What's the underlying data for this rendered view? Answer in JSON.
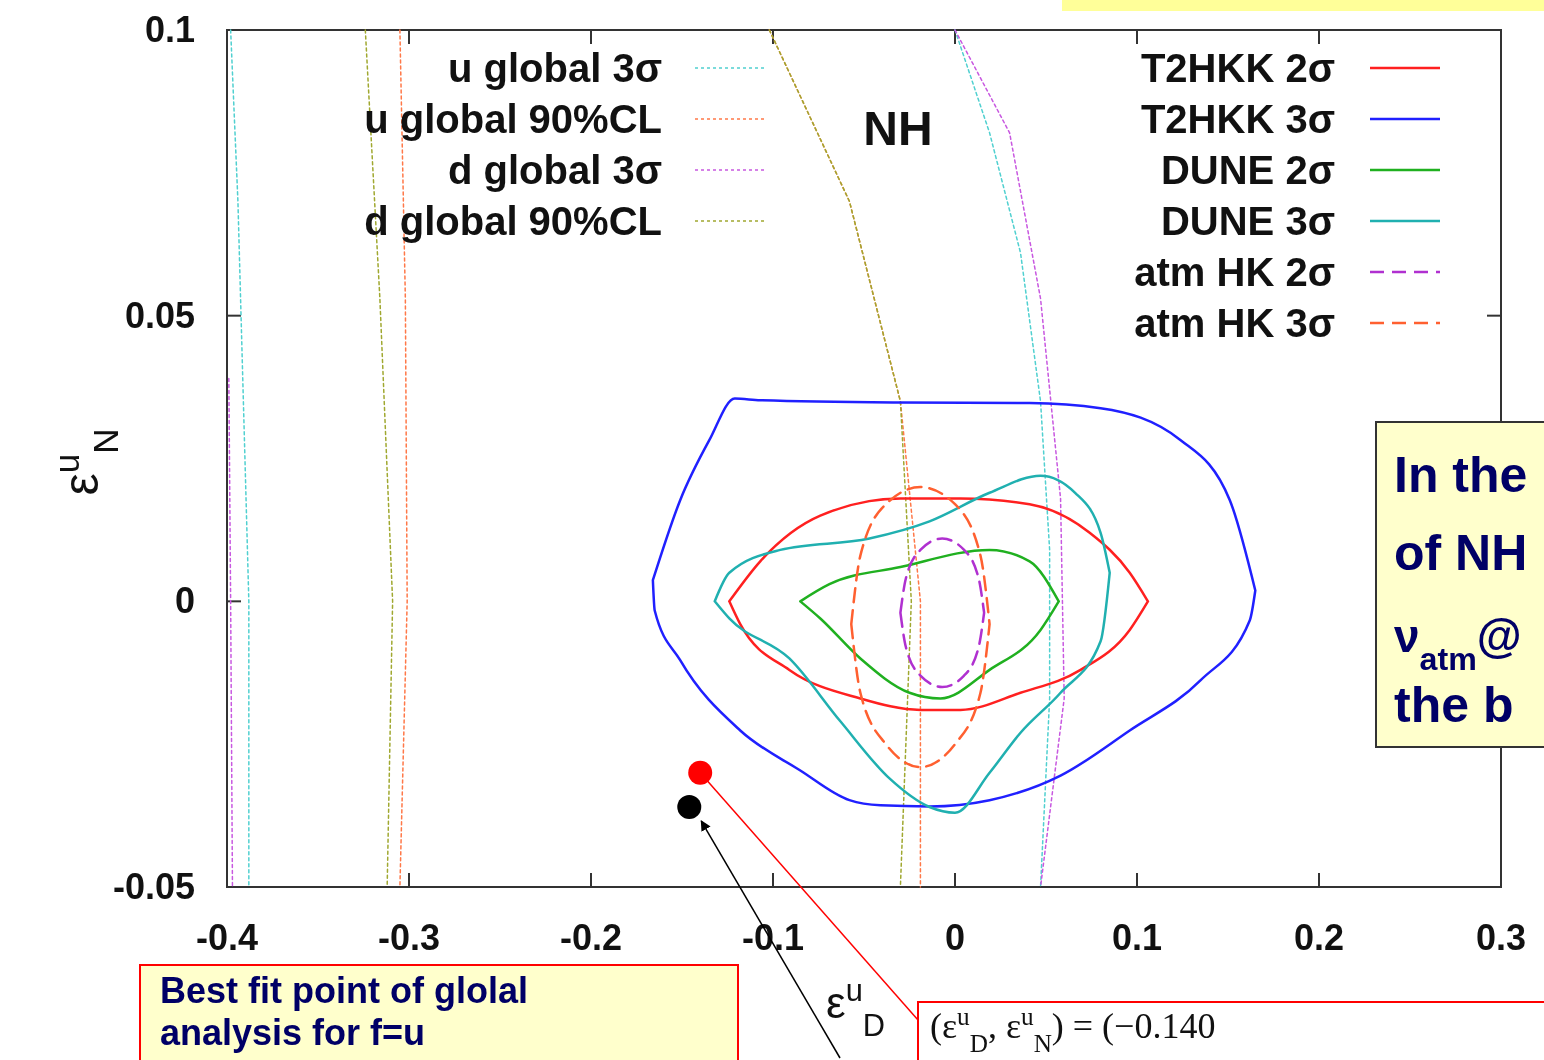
{
  "chart_data": {
    "type": "line",
    "xlabel": "ε$^{u}$$_{D}$",
    "ylabel": "ε$^{u}$$_{N}$",
    "xlim": [
      -0.4,
      0.3
    ],
    "ylim": [
      -0.05,
      0.1
    ],
    "xticks": [
      -0.4,
      -0.3,
      -0.2,
      -0.1,
      0,
      0.1,
      0.2,
      0.3
    ],
    "yticks": [
      -0.05,
      0,
      0.05,
      0.1
    ],
    "legend": "top",
    "marker": "none",
    "annotations": [
      "NH",
      "In the",
      "of NH",
      "ν$_{atm}$@",
      "the b",
      "Best fit point of glolal",
      "analysis for f=u",
      {
        "text": "(ε$^{u}$$_{D}$, ε$^{u}$$_{N}$) = (−0.140",
        "x": -0.14,
        "y": -0.03
      }
    ],
    "series": [
      {
        "name": "u global 3σ",
        "color": "#50d0d0",
        "line_style": "dotted",
        "x": [
          -0.398,
          -0.394,
          -0.391,
          -0.388,
          -0.388,
          null,
          0,
          0.019,
          0.036,
          0.047,
          0.052,
          0.052,
          0.047
        ],
        "values": [
          0.1,
          0.07,
          0.035,
          0,
          -0.05,
          null,
          0.1,
          0.082,
          0.061,
          0.035,
          0.009,
          -0.017,
          -0.05
        ]
      },
      {
        "name": "u global 90%CL",
        "color": "#ff7848",
        "line_style": "dotted",
        "x": [
          -0.305,
          -0.302,
          -0.301,
          -0.305,
          null,
          -0.102,
          -0.058,
          -0.03,
          -0.019,
          -0.019
        ],
        "values": [
          0.1,
          0.053,
          0,
          -0.05,
          null,
          0.1,
          0.07,
          0.035,
          0,
          -0.05
        ]
      },
      {
        "name": "d global 3σ",
        "color": "#c858e0",
        "line_style": "dotted",
        "x": [
          -0.399,
          -0.398,
          -0.397,
          null,
          0,
          0.03,
          0.047,
          0.058,
          0.06,
          0.047
        ],
        "values": [
          0.039,
          0,
          -0.05,
          null,
          0.1,
          0.082,
          0.053,
          0.018,
          -0.017,
          -0.05
        ]
      },
      {
        "name": "d global 90%CL",
        "color": "#a0a830",
        "line_style": "dotted",
        "x": [
          -0.324,
          -0.316,
          -0.309,
          -0.312,
          null,
          -0.102,
          -0.058,
          -0.03,
          -0.024,
          -0.03
        ],
        "values": [
          0.1,
          0.053,
          0,
          -0.05,
          null,
          0.1,
          0.07,
          0.035,
          0,
          -0.05
        ]
      },
      {
        "name": "T2HKK 2σ",
        "color": "#ff2020",
        "line_style": "solid",
        "x": [
          -0.124,
          -0.107,
          -0.074,
          -0.03,
          0.003,
          0.041,
          0.074,
          0.096,
          0.106,
          null,
          -0.124,
          -0.118,
          -0.091,
          -0.052,
          -0.019,
          0.003,
          0.036,
          0.069,
          0.096,
          0.106
        ],
        "values": [
          0,
          0.007,
          0.015,
          0.018,
          0.018,
          0.017,
          0.012,
          0.005,
          0,
          null,
          0,
          -0.004,
          -0.012,
          -0.017,
          -0.019,
          -0.019,
          -0.016,
          -0.012,
          -0.005,
          0
        ]
      },
      {
        "name": "T2HKK 3σ",
        "color": "#2020ff",
        "line_style": "solid",
        "x": [
          -0.166,
          -0.151,
          -0.135,
          -0.121,
          -0.107,
          -0.03,
          0.041,
          0.08,
          0.124,
          0.151,
          0.165,
          null,
          -0.166,
          -0.165,
          -0.151,
          -0.118,
          -0.085,
          -0.058,
          -0.041,
          -0.014,
          0.019,
          0.058,
          0.096,
          0.135,
          0.162,
          0.165
        ],
        "values": [
          0.0037,
          0.0177,
          0.0282,
          0.0355,
          0.0352,
          0.0348,
          0.0347,
          0.0338,
          0.0282,
          0.0177,
          0.0019,
          null,
          0.0037,
          -0.0016,
          -0.0103,
          -0.0226,
          -0.0296,
          -0.0348,
          -0.0357,
          -0.0359,
          -0.0348,
          -0.0305,
          -0.0226,
          -0.0138,
          -0.0033,
          0.0019
        ]
      },
      {
        "name": "DUNE 2σ",
        "color": "#20b020",
        "line_style": "solid",
        "x": [
          -0.085,
          -0.069,
          -0.03,
          0.019,
          0.041,
          0.057,
          null,
          -0.085,
          -0.074,
          -0.052,
          -0.025,
          -0.008,
          0.019,
          0.047,
          0.057
        ],
        "values": [
          0,
          0.003,
          0.006,
          0.009,
          0.007,
          0,
          null,
          0,
          -0.003,
          -0.01,
          -0.016,
          -0.017,
          -0.012,
          -0.005,
          0
        ]
      },
      {
        "name": "DUNE 3σ",
        "color": "#20b0b0",
        "line_style": "solid",
        "x": [
          -0.132,
          -0.124,
          -0.096,
          -0.047,
          -0.014,
          0.019,
          0.047,
          0.066,
          0.08,
          0.085,
          null,
          -0.132,
          -0.124,
          -0.091,
          -0.063,
          -0.036,
          -0.014,
          0,
          0.019,
          0.036,
          0.058,
          0.08,
          0.085
        ],
        "values": [
          0,
          0.005,
          0.009,
          0.011,
          0.014,
          0.019,
          0.022,
          0.019,
          0.012,
          0.005,
          null,
          0,
          -0.003,
          -0.01,
          -0.021,
          -0.031,
          -0.036,
          -0.037,
          -0.03,
          -0.023,
          -0.016,
          -0.007,
          0.005
        ]
      },
      {
        "name": "atm HK 2σ",
        "color": "#b030d0",
        "line_style": "dashed",
        "x": [
          -0.03,
          -0.027,
          -0.019,
          -0.007,
          0.005,
          0.013,
          0.016,
          null,
          -0.03,
          -0.027,
          -0.019,
          -0.007,
          0.005,
          0.013,
          0.016
        ],
        "values": [
          -0.002,
          0.004,
          0.009,
          0.011,
          0.009,
          0.004,
          -0.002,
          null,
          -0.002,
          -0.008,
          -0.013,
          -0.015,
          -0.013,
          -0.008,
          -0.002
        ]
      },
      {
        "name": "atm HK 3σ",
        "color": "#ff6030",
        "line_style": "dashed",
        "x": [
          -0.057,
          -0.052,
          -0.038,
          -0.019,
          0,
          0.014,
          0.019,
          null,
          -0.057,
          -0.052,
          -0.038,
          -0.019,
          0,
          0.014,
          0.019
        ],
        "values": [
          -0.004,
          0.008,
          0.017,
          0.02,
          0.017,
          0.008,
          -0.004,
          null,
          -0.004,
          -0.016,
          -0.025,
          -0.029,
          -0.025,
          -0.016,
          -0.004
        ]
      },
      {
        "type": "scatter",
        "marker": "circle",
        "color": "#ff0000",
        "x": [
          -0.14
        ],
        "values": [
          -0.03
        ]
      },
      {
        "type": "scatter",
        "marker": "circle",
        "color": "#000000",
        "x": [
          -0.146
        ],
        "values": [
          -0.036
        ]
      }
    ]
  }
}
